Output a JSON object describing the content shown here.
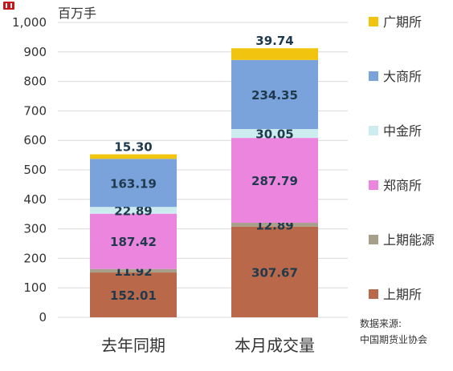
{
  "chart_data": {
    "type": "bar",
    "stacked": true,
    "unit_label": "百万手",
    "categories": [
      "去年同期",
      "本月成交量"
    ],
    "ylim": [
      0,
      1000
    ],
    "yticks": [
      "0",
      "100",
      "200",
      "300",
      "400",
      "500",
      "600",
      "700",
      "800",
      "900",
      "1,000"
    ],
    "yticks_values": [
      0,
      100,
      200,
      300,
      400,
      500,
      600,
      700,
      800,
      900,
      1000
    ],
    "grid": true,
    "legend_position": "right",
    "series": [
      {
        "name": "上期所",
        "color": "#b9694a",
        "values": [
          152.01,
          307.67
        ]
      },
      {
        "name": "上期能源",
        "color": "#a89f8a",
        "values": [
          11.92,
          12.89
        ]
      },
      {
        "name": "郑商所",
        "color": "#ec85de",
        "values": [
          187.42,
          287.79
        ]
      },
      {
        "name": "中金所",
        "color": "#cdecef",
        "values": [
          22.89,
          30.05
        ]
      },
      {
        "name": "大商所",
        "color": "#7aa3dc",
        "values": [
          163.19,
          234.35
        ]
      },
      {
        "name": "广期所",
        "color": "#f1c40f",
        "values": [
          15.3,
          39.74
        ]
      }
    ],
    "data_labels": [
      [
        "152.01",
        "307.67"
      ],
      [
        "11.92",
        "12.89"
      ],
      [
        "187.42",
        "287.79"
      ],
      [
        "22.89",
        "30.05"
      ],
      [
        "163.19",
        "234.35"
      ],
      [
        "15.30",
        "39.74"
      ]
    ],
    "source_note": [
      "数据来源:",
      "中国期货业协会"
    ]
  }
}
